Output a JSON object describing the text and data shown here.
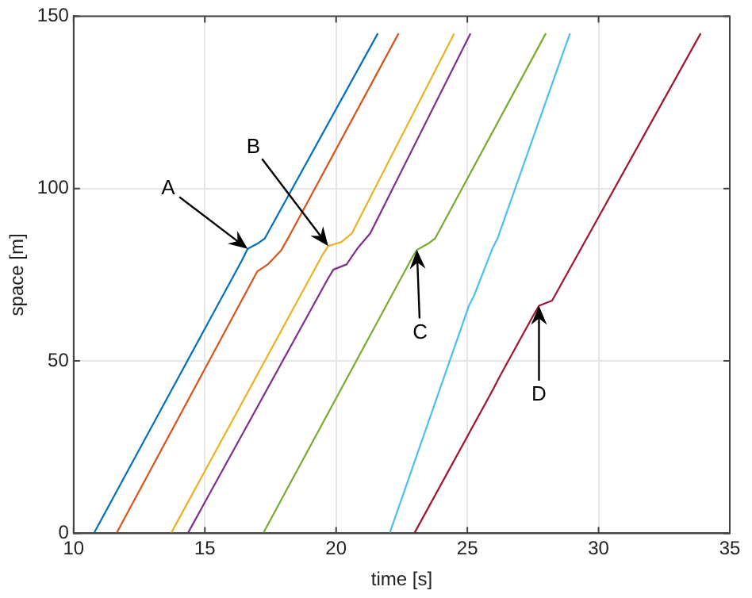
{
  "chart_data": {
    "type": "line",
    "xlabel": "time [s]",
    "ylabel": "space [m]",
    "xlim": [
      10,
      35
    ],
    "ylim": [
      0,
      150
    ],
    "xticks": [
      10,
      15,
      20,
      25,
      30,
      35
    ],
    "yticks": [
      0,
      50,
      100,
      150
    ],
    "grid": true,
    "legend": false,
    "marker": "none",
    "line_style": "solid",
    "series": [
      {
        "color": "#0072bd",
        "x": [
          10.77,
          16.4,
          16.63,
          17.0,
          17.28,
          21.59
        ],
        "values": [
          0,
          79,
          82.5,
          84,
          85.5,
          145
        ]
      },
      {
        "color": "#d95319",
        "x": [
          11.63,
          17.0,
          17.4,
          17.9,
          18.2,
          22.38
        ],
        "values": [
          0,
          76,
          78,
          82,
          86,
          145
        ]
      },
      {
        "color": "#edb120",
        "x": [
          13.71,
          19.5,
          19.7,
          20.2,
          20.6,
          24.5
        ],
        "values": [
          0,
          81,
          83.3,
          84.5,
          87,
          145
        ]
      },
      {
        "color": "#7e2f8e",
        "x": [
          14.35,
          19.7,
          19.9,
          20.4,
          20.8,
          21.3,
          25.12
        ],
        "values": [
          0,
          74,
          76.5,
          78,
          82.5,
          87,
          145
        ]
      },
      {
        "color": "#77ac30",
        "x": [
          17.22,
          22.9,
          23.08,
          23.5,
          23.77,
          27.99
        ],
        "values": [
          0,
          80,
          82.2,
          84,
          85.5,
          145
        ]
      },
      {
        "color": "#4dbeee",
        "x": [
          22.04,
          25.06,
          25.26,
          25.95,
          26.15,
          28.91
        ],
        "values": [
          0,
          66,
          69,
          82.5,
          85.5,
          145
        ]
      },
      {
        "color": "#a2142f",
        "x": [
          22.98,
          26.0,
          26.2,
          27.5,
          27.73,
          28.23,
          33.89
        ],
        "values": [
          0,
          42,
          45,
          63,
          66,
          67.5,
          145
        ]
      }
    ],
    "annotations": [
      {
        "text": "A",
        "x": 16.63,
        "y": 82.5
      },
      {
        "text": "B",
        "x": 19.7,
        "y": 83.3
      },
      {
        "text": "C",
        "x": 23.08,
        "y": 82.2
      },
      {
        "text": "D",
        "x": 27.73,
        "y": 66
      }
    ]
  }
}
